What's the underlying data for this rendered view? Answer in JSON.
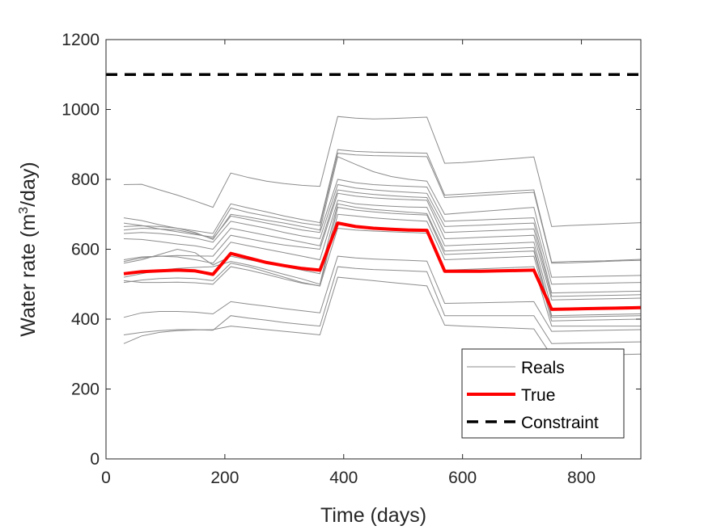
{
  "chart_data": {
    "type": "line",
    "title": "",
    "xlabel": "Time (days)",
    "ylabel_main": "Water rate (m",
    "ylabel_sup": "3",
    "ylabel_tail": "/day)",
    "xlim": [
      0,
      900
    ],
    "ylim": [
      0,
      1200
    ],
    "xticks": [
      0,
      200,
      400,
      600,
      800
    ],
    "yticks": [
      0,
      200,
      400,
      600,
      800,
      1000,
      1200
    ],
    "grid": false,
    "legend_position": "bottom-right",
    "legend": [
      {
        "label": "Reals",
        "style": "thin-gray"
      },
      {
        "label": "True",
        "style": "thick-red"
      },
      {
        "label": "Constraint",
        "style": "dashed-black"
      }
    ],
    "colors": {
      "reals": "#8c8c8c",
      "true": "#ff0000",
      "constraint": "#000000",
      "axis": "#262626"
    },
    "constraint": {
      "name": "Constraint",
      "y": 1100
    },
    "x": [
      30,
      60,
      90,
      120,
      150,
      180,
      210,
      240,
      270,
      300,
      330,
      360,
      390,
      420,
      450,
      480,
      510,
      540,
      570,
      600,
      630,
      660,
      690,
      720,
      750,
      780,
      810,
      840,
      870,
      900
    ],
    "true_series": {
      "name": "True",
      "values": [
        530,
        536,
        538,
        540,
        538,
        528,
        588,
        575,
        562,
        553,
        545,
        540,
        675,
        665,
        660,
        657,
        655,
        654,
        537,
        537,
        537,
        538,
        539,
        540,
        428,
        429,
        430,
        431,
        432,
        433
      ]
    },
    "reals": [
      {
        "name": "Reals",
        "values": [
          785,
          786,
          770,
          755,
          738,
          720,
          818,
          805,
          795,
          788,
          783,
          780,
          980,
          975,
          973,
          974,
          976,
          978,
          846,
          848,
          852,
          856,
          860,
          864,
          665,
          668,
          670,
          672,
          674,
          676
        ]
      },
      {
        "name": "Reals",
        "values": [
          690,
          682,
          670,
          660,
          653,
          645,
          730,
          718,
          707,
          695,
          685,
          676,
          885,
          880,
          878,
          877,
          876,
          875,
          755,
          758,
          761,
          764,
          767,
          770,
          563,
          565,
          566,
          567,
          569,
          571
        ]
      },
      {
        "name": "Reals",
        "values": [
          675,
          668,
          658,
          650,
          642,
          635,
          718,
          705,
          695,
          685,
          675,
          668,
          875,
          870,
          868,
          867,
          866,
          865,
          748,
          751,
          754,
          757,
          760,
          763,
          560,
          561,
          563,
          565,
          567,
          568
        ]
      },
      {
        "name": "Reals",
        "values": [
          665,
          667,
          665,
          660,
          648,
          628,
          700,
          692,
          683,
          675,
          665,
          655,
          865,
          843,
          822,
          808,
          800,
          795,
          700,
          704,
          708,
          712,
          716,
          720,
          520,
          521,
          522,
          523,
          524,
          525
        ]
      },
      {
        "name": "Reals",
        "values": [
          655,
          660,
          658,
          655,
          645,
          630,
          695,
          685,
          675,
          665,
          655,
          648,
          800,
          790,
          785,
          782,
          780,
          778,
          680,
          682,
          684,
          686,
          688,
          690,
          500,
          501,
          502,
          503,
          504,
          505
        ]
      },
      {
        "name": "Reals",
        "values": [
          645,
          648,
          645,
          640,
          632,
          620,
          680,
          670,
          660,
          648,
          638,
          630,
          785,
          775,
          770,
          766,
          763,
          760,
          665,
          667,
          669,
          671,
          673,
          675,
          475,
          476,
          477,
          478,
          479,
          480
        ]
      },
      {
        "name": "Reals",
        "values": [
          630,
          628,
          622,
          615,
          610,
          600,
          660,
          650,
          640,
          630,
          620,
          610,
          770,
          762,
          757,
          753,
          750,
          748,
          648,
          650,
          652,
          654,
          656,
          658,
          465,
          466,
          467,
          468,
          469,
          470
        ]
      },
      {
        "name": "Reals",
        "values": [
          570,
          578,
          580,
          582,
          581,
          580,
          640,
          630,
          620,
          612,
          606,
          600,
          760,
          752,
          747,
          744,
          742,
          740,
          630,
          632,
          634,
          636,
          638,
          640,
          455,
          456,
          457,
          458,
          459,
          460
        ]
      },
      {
        "name": "Reals",
        "values": [
          565,
          575,
          580,
          578,
          570,
          560,
          620,
          610,
          600,
          590,
          580,
          570,
          740,
          730,
          726,
          723,
          721,
          720,
          610,
          612,
          614,
          616,
          618,
          620,
          430,
          432,
          433,
          434,
          435,
          436
        ]
      },
      {
        "name": "Reals",
        "values": [
          560,
          570,
          585,
          600,
          590,
          555,
          580,
          570,
          560,
          550,
          540,
          530,
          730,
          720,
          714,
          710,
          706,
          702,
          595,
          597,
          599,
          601,
          603,
          605,
          410,
          411,
          412,
          413,
          414,
          415
        ]
      },
      {
        "name": "Reals",
        "values": [
          520,
          530,
          540,
          545,
          548,
          550,
          565,
          555,
          542,
          528,
          515,
          500,
          720,
          712,
          707,
          703,
          700,
          698,
          585,
          587,
          589,
          591,
          593,
          595,
          405,
          406,
          407,
          408,
          409,
          410
        ]
      },
      {
        "name": "Reals",
        "values": [
          505,
          512,
          516,
          518,
          516,
          510,
          560,
          550,
          535,
          520,
          505,
          495,
          700,
          695,
          690,
          686,
          683,
          680,
          570,
          572,
          574,
          576,
          578,
          580,
          395,
          396,
          397,
          398,
          399,
          400
        ]
      },
      {
        "name": "Reals",
        "values": [
          510,
          505,
          505,
          506,
          504,
          500,
          550,
          540,
          528,
          515,
          503,
          495,
          660,
          655,
          652,
          650,
          648,
          646,
          540,
          542,
          544,
          546,
          548,
          550,
          380,
          380,
          380,
          380,
          380,
          380
        ]
      },
      {
        "name": "Reals",
        "values": [
          405,
          418,
          422,
          422,
          420,
          415,
          450,
          443,
          437,
          430,
          424,
          418,
          580,
          575,
          572,
          570,
          568,
          566,
          445,
          446,
          447,
          448,
          449,
          450,
          365,
          366,
          367,
          368,
          369,
          370
        ]
      },
      {
        "name": "Reals",
        "values": [
          355,
          362,
          367,
          370,
          370,
          368,
          410,
          403,
          397,
          390,
          385,
          380,
          550,
          545,
          542,
          540,
          538,
          536,
          410,
          410,
          410,
          410,
          410,
          410,
          330,
          331,
          332,
          333,
          334,
          335
        ]
      },
      {
        "name": "Reals",
        "values": [
          330,
          352,
          362,
          367,
          369,
          370,
          380,
          375,
          370,
          365,
          360,
          355,
          520,
          515,
          510,
          505,
          500,
          495,
          383,
          380,
          378,
          376,
          374,
          372,
          295,
          296,
          297,
          298,
          299,
          300
        ]
      }
    ]
  }
}
